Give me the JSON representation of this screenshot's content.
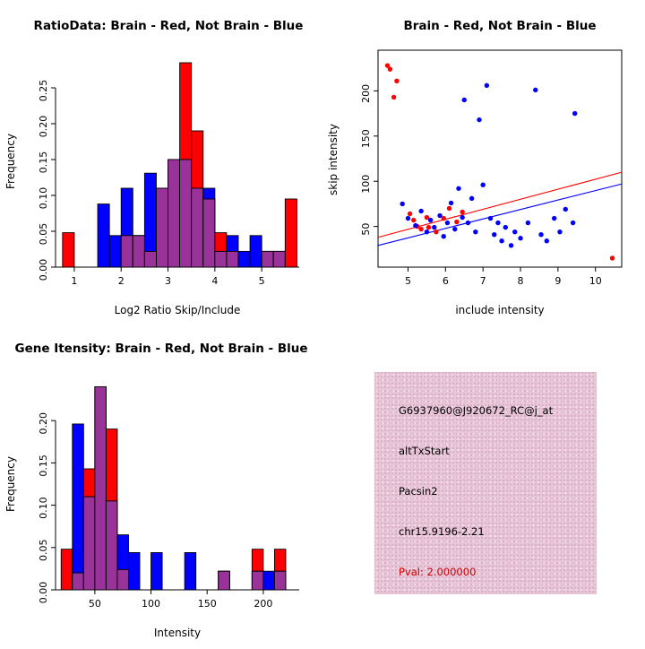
{
  "colors": {
    "red": "#FF0000",
    "blue": "#0000FF",
    "overlap": "#993399",
    "box_bg": "#E8C6D8",
    "pval_red": "#CC0000",
    "axis": "#000000"
  },
  "chart_data": [
    {
      "type": "bar",
      "id": "ratio_hist",
      "title": "RatioData: Brain - Red, Not Brain - Blue",
      "xlabel": "Log2 Ratio Skip/Include",
      "ylabel": "Frequency",
      "xlim": [
        0.6,
        5.8
      ],
      "ylim": [
        0,
        0.295
      ],
      "xticks": [
        1,
        2,
        3,
        4,
        5
      ],
      "xtick_labels": [
        "1",
        "2",
        "3",
        "4",
        "5"
      ],
      "yticks": [
        0,
        0.05,
        0.1,
        0.15,
        0.2,
        0.25
      ],
      "ytick_labels": [
        "0.00",
        "0.05",
        "0.10",
        "0.15",
        "0.20",
        "0.25"
      ],
      "bin_width": 0.25,
      "bin_centers": [
        0.875,
        1.125,
        1.375,
        1.625,
        1.875,
        2.125,
        2.375,
        2.625,
        2.875,
        3.125,
        3.375,
        3.625,
        3.875,
        4.125,
        4.375,
        4.625,
        4.875,
        5.125,
        5.375,
        5.625
      ],
      "series": [
        {
          "name": "Brain (red)",
          "color_key": "red",
          "values": [
            0.048,
            0,
            0,
            0,
            0,
            0.044,
            0.044,
            0.022,
            0.11,
            0.15,
            0.285,
            0.19,
            0.095,
            0.048,
            0.022,
            0,
            0,
            0.022,
            0.022,
            0.095
          ]
        },
        {
          "name": "Not Brain (blue)",
          "color_key": "blue",
          "values": [
            0,
            0,
            0,
            0.088,
            0.044,
            0.11,
            0.044,
            0.131,
            0.11,
            0.15,
            0.15,
            0.11,
            0.11,
            0.022,
            0.044,
            0.022,
            0.044,
            0.022,
            0.022,
            0
          ]
        }
      ],
      "overlap_note": "overlapping region drawn in purple"
    },
    {
      "type": "scatter",
      "id": "intensity_scatter",
      "title": "Brain - Red, Not Brain - Blue",
      "xlabel": "include intensity",
      "ylabel": "skip intensity",
      "xlim": [
        4.2,
        10.7
      ],
      "ylim": [
        5,
        245
      ],
      "xticks": [
        5,
        6,
        7,
        8,
        9,
        10
      ],
      "xtick_labels": [
        "5",
        "6",
        "7",
        "8",
        "9",
        "10"
      ],
      "yticks": [
        50,
        100,
        150,
        200
      ],
      "ytick_labels": [
        "50",
        "100",
        "150",
        "200"
      ],
      "series": [
        {
          "name": "Brain (red)",
          "color_key": "red",
          "points": [
            [
              4.45,
              228
            ],
            [
              4.52,
              224
            ],
            [
              4.7,
              211
            ],
            [
              4.62,
              193
            ],
            [
              5.05,
              64
            ],
            [
              5.15,
              57
            ],
            [
              5.25,
              50
            ],
            [
              5.35,
              47
            ],
            [
              5.5,
              60
            ],
            [
              5.55,
              49
            ],
            [
              5.75,
              44
            ],
            [
              5.95,
              59
            ],
            [
              6.1,
              70
            ],
            [
              6.3,
              55
            ],
            [
              6.45,
              66
            ],
            [
              10.45,
              15
            ]
          ]
        },
        {
          "name": "Not Brain (blue)",
          "color_key": "blue",
          "points": [
            [
              4.85,
              75
            ],
            [
              5.0,
              59
            ],
            [
              5.2,
              51
            ],
            [
              5.35,
              67
            ],
            [
              5.5,
              44
            ],
            [
              5.6,
              57
            ],
            [
              5.7,
              49
            ],
            [
              5.85,
              62
            ],
            [
              5.95,
              39
            ],
            [
              6.05,
              54
            ],
            [
              6.15,
              76
            ],
            [
              6.25,
              47
            ],
            [
              6.35,
              92
            ],
            [
              6.45,
              60
            ],
            [
              6.5,
              190
            ],
            [
              6.6,
              54
            ],
            [
              6.7,
              81
            ],
            [
              6.8,
              44
            ],
            [
              6.9,
              168
            ],
            [
              7.0,
              96
            ],
            [
              7.1,
              206
            ],
            [
              7.2,
              59
            ],
            [
              7.3,
              41
            ],
            [
              7.4,
              54
            ],
            [
              7.5,
              34
            ],
            [
              7.6,
              49
            ],
            [
              7.75,
              29
            ],
            [
              7.85,
              44
            ],
            [
              8.0,
              37
            ],
            [
              8.2,
              54
            ],
            [
              8.4,
              201
            ],
            [
              8.55,
              41
            ],
            [
              8.7,
              34
            ],
            [
              8.9,
              59
            ],
            [
              9.05,
              44
            ],
            [
              9.2,
              69
            ],
            [
              9.45,
              175
            ],
            [
              9.4,
              54
            ]
          ]
        }
      ],
      "fit_lines": [
        {
          "color_key": "red",
          "x1": 4.2,
          "y1": 38,
          "x2": 10.7,
          "y2": 110
        },
        {
          "color_key": "blue",
          "x1": 4.2,
          "y1": 29,
          "x2": 10.7,
          "y2": 97
        }
      ]
    },
    {
      "type": "bar",
      "id": "gene_hist",
      "title": "Gene Itensity: Brain - Red, Not Brain - Blue",
      "xlabel": "Intensity",
      "ylabel": "Frequency",
      "xlim": [
        15,
        232
      ],
      "ylim": [
        0,
        0.25
      ],
      "xticks": [
        50,
        100,
        150,
        200
      ],
      "xtick_labels": [
        "50",
        "100",
        "150",
        "200"
      ],
      "yticks": [
        0,
        0.05,
        0.1,
        0.15,
        0.2
      ],
      "ytick_labels": [
        "0.00",
        "0.05",
        "0.10",
        "0.15",
        "0.20"
      ],
      "bin_width": 10,
      "bin_centers": [
        25,
        35,
        45,
        55,
        65,
        75,
        85,
        95,
        105,
        115,
        125,
        135,
        145,
        155,
        165,
        175,
        185,
        195,
        205,
        215
      ],
      "series": [
        {
          "name": "Brain (red)",
          "color_key": "red",
          "values": [
            0.048,
            0.02,
            0.143,
            0.24,
            0.19,
            0.024,
            0,
            0,
            0,
            0,
            0,
            0,
            0,
            0,
            0.022,
            0,
            0,
            0.048,
            0,
            0.048
          ]
        },
        {
          "name": "Not Brain (blue)",
          "color_key": "blue",
          "values": [
            0,
            0.196,
            0.11,
            0.24,
            0.105,
            0.065,
            0.044,
            0,
            0.044,
            0,
            0,
            0.044,
            0,
            0,
            0.022,
            0,
            0,
            0.022,
            0.022,
            0.022
          ]
        }
      ],
      "overlap_note": "overlapping region drawn in purple"
    }
  ],
  "info_box": {
    "lines": [
      "G6937960@J920672_RC@j_at",
      "altTxStart",
      "Pacsin2",
      "chr15.9196-2.21"
    ],
    "pval_line": "Pval: 2.000000"
  }
}
